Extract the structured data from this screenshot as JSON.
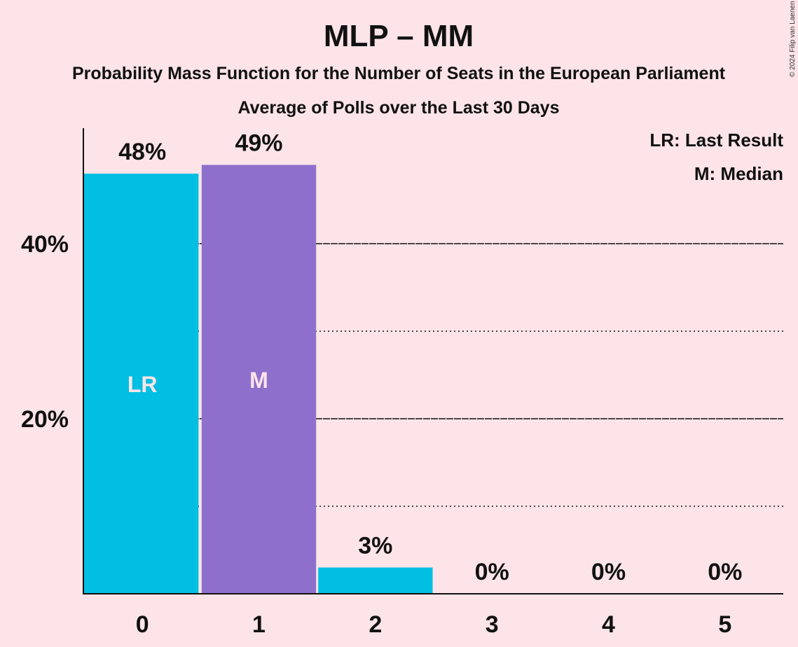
{
  "header": {
    "title": "MLP – MM",
    "subtitle": "Probability Mass Function for the Number of Seats in the European Parliament",
    "subsubtitle": "Average of Polls over the Last 30 Days",
    "copyright": "© 2024 Filip van Laenen"
  },
  "legend": {
    "last_result": "LR: Last Result",
    "median": "M: Median"
  },
  "chart_data": {
    "type": "bar",
    "categories": [
      "0",
      "1",
      "2",
      "3",
      "4",
      "5"
    ],
    "values": [
      48,
      49,
      3,
      0,
      0,
      0
    ],
    "value_labels": [
      "48%",
      "49%",
      "3%",
      "0%",
      "0%",
      "0%"
    ],
    "bar_markers": [
      "LR",
      "M",
      "",
      "",
      "",
      ""
    ],
    "bar_colors": [
      "#00bfe3",
      "#8e70cc",
      "#00bfe3",
      "#00bfe3",
      "#00bfe3",
      "#00bfe3"
    ],
    "yticks": [
      20,
      40
    ],
    "ytick_labels": [
      "20%",
      "40%"
    ],
    "minor_gridlines": [
      10,
      30
    ],
    "ylim": [
      0,
      53.2
    ],
    "xlabel": "",
    "ylabel": ""
  }
}
